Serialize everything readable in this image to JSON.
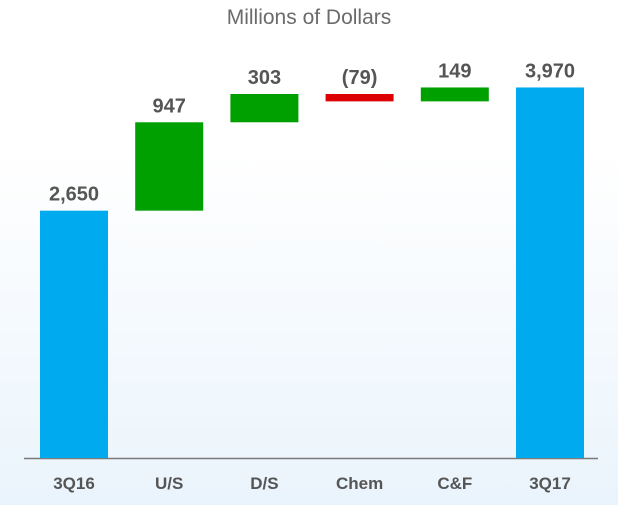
{
  "chart_data": {
    "type": "bar",
    "subtype": "waterfall",
    "title": "Millions of Dollars",
    "xlabel": "",
    "ylabel": "",
    "grid": false,
    "legend": "none",
    "categories": [
      "3Q16",
      "U/S",
      "D/S",
      "Chem",
      "C&F",
      "3Q17"
    ],
    "values": [
      2650,
      947,
      303,
      -79,
      149,
      3970
    ],
    "labels": [
      "2,650",
      "947",
      "303",
      "(79)",
      "149",
      "3,970"
    ],
    "kinds": [
      "total",
      "delta",
      "delta",
      "delta",
      "delta",
      "total"
    ],
    "ylim": [
      0,
      4350
    ],
    "colors": {
      "total": "#00aaef",
      "increase": "#00a000",
      "decrease": "#dd0000",
      "axis": "#7a7a7a",
      "text": "#555555"
    }
  }
}
